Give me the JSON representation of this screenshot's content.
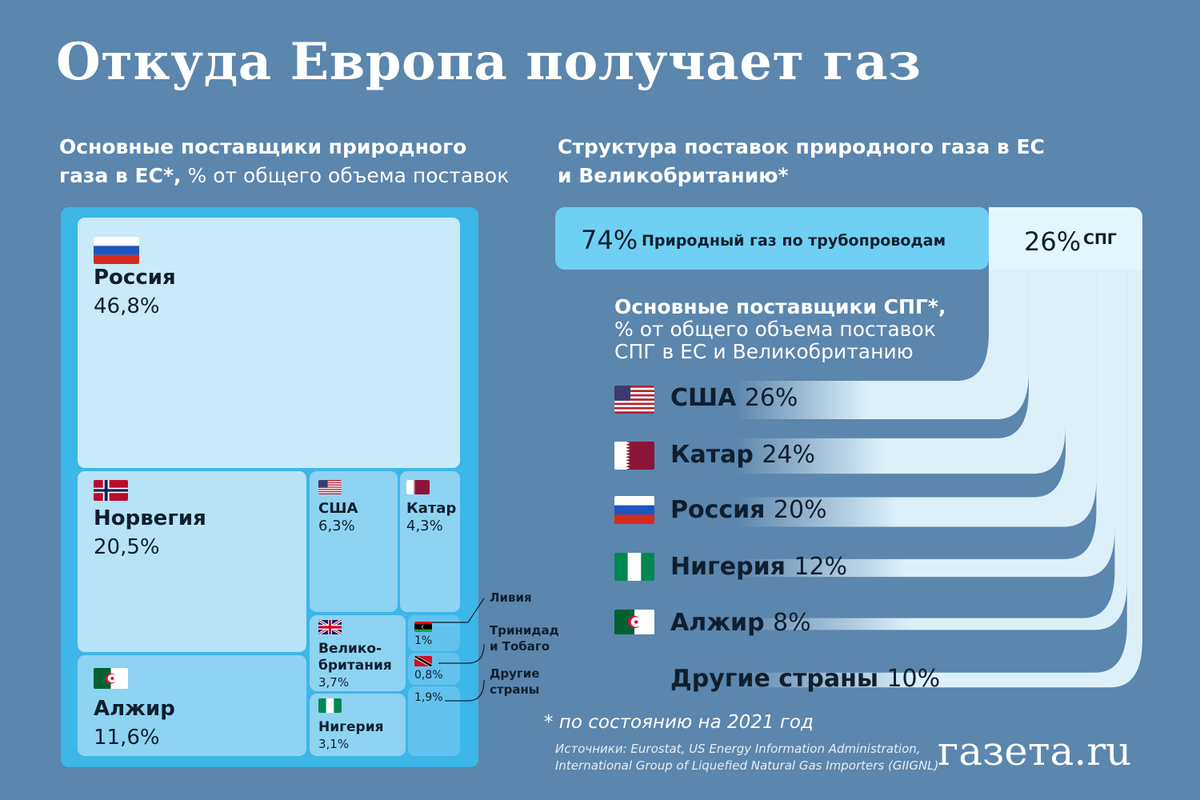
{
  "title": "Откуда Европа получает газ",
  "left_subtitle": {
    "line1": "Основные поставщики природного",
    "line2_bold": "газа в ЕС*,",
    "line2_rest": " % от общего объема поставок"
  },
  "right_subtitle": {
    "line1": "Структура поставок природного газа в ЕС",
    "line2": "и Великобританию*"
  },
  "lng_subtitle": {
    "line1": "Основные поставщики СПГ*,",
    "line2": "% от общего объема поставок",
    "line3": "СПГ в ЕС и Великобританию"
  },
  "footnote": "* по состоянию на 2021 год",
  "sources": {
    "line1": "Источники: Eurostat, US Energy Information Administration,",
    "line2": "International Group of Liquefied Natural Gas Importers (GIIGNL)"
  },
  "logo": "газета.ru",
  "colors": {
    "background": "#5b86ad",
    "panel": "#3db6e8",
    "pipeline_bar": "#6fd0f3",
    "lng_bar": "#e4f6fd",
    "tile_large": "#c9eaf8",
    "text_dark": "#0f1f2e"
  },
  "chart_data": [
    {
      "type": "treemap",
      "unit": "%",
      "items": [
        {
          "name": "Россия",
          "label": "46,8%",
          "value": 46.8
        },
        {
          "name": "Норвегия",
          "label": "20,5%",
          "value": 20.5
        },
        {
          "name": "Алжир",
          "label": "11,6%",
          "value": 11.6
        },
        {
          "name": "США",
          "label": "6,3%",
          "value": 6.3
        },
        {
          "name": "Катар",
          "label": "4,3%",
          "value": 4.3
        },
        {
          "name": "Велико-британия",
          "name_line1": "Велико-",
          "name_line2": "британия",
          "label": "3,7%",
          "value": 3.7
        },
        {
          "name": "Нигерия",
          "label": "3,1%",
          "value": 3.1
        },
        {
          "name": "Ливия",
          "label": "1%",
          "value": 1.0
        },
        {
          "name": "Тринидад и Тобаго",
          "name_line1": "Тринидад",
          "name_line2": "и Тобаго",
          "label": "0,8%",
          "value": 0.8
        },
        {
          "name": "Другие страны",
          "name_line1": "Другие",
          "name_line2": "страны",
          "label": "1,9%",
          "value": 1.9
        }
      ]
    },
    {
      "type": "bar",
      "stacked": true,
      "unit": "%",
      "segments": [
        {
          "label": "74%",
          "name": "Природный газ по трубопроводам",
          "value": 74
        },
        {
          "label": "26%",
          "name": "СПГ",
          "value": 26
        }
      ]
    },
    {
      "type": "bar",
      "unit": "%",
      "categories": [
        "США",
        "Катар",
        "Россия",
        "Нигерия",
        "Алжир",
        "Другие страны"
      ],
      "labels": [
        "26%",
        "24%",
        "20%",
        "12%",
        "8%",
        "10%"
      ],
      "values": [
        26,
        24,
        20,
        12,
        8,
        10
      ]
    }
  ],
  "icons": [
    "flag-russia-icon",
    "flag-norway-icon",
    "flag-algeria-icon",
    "flag-usa-icon",
    "flag-qatar-icon",
    "flag-uk-icon",
    "flag-nigeria-icon",
    "flag-libya-icon",
    "flag-trinidad-icon"
  ]
}
